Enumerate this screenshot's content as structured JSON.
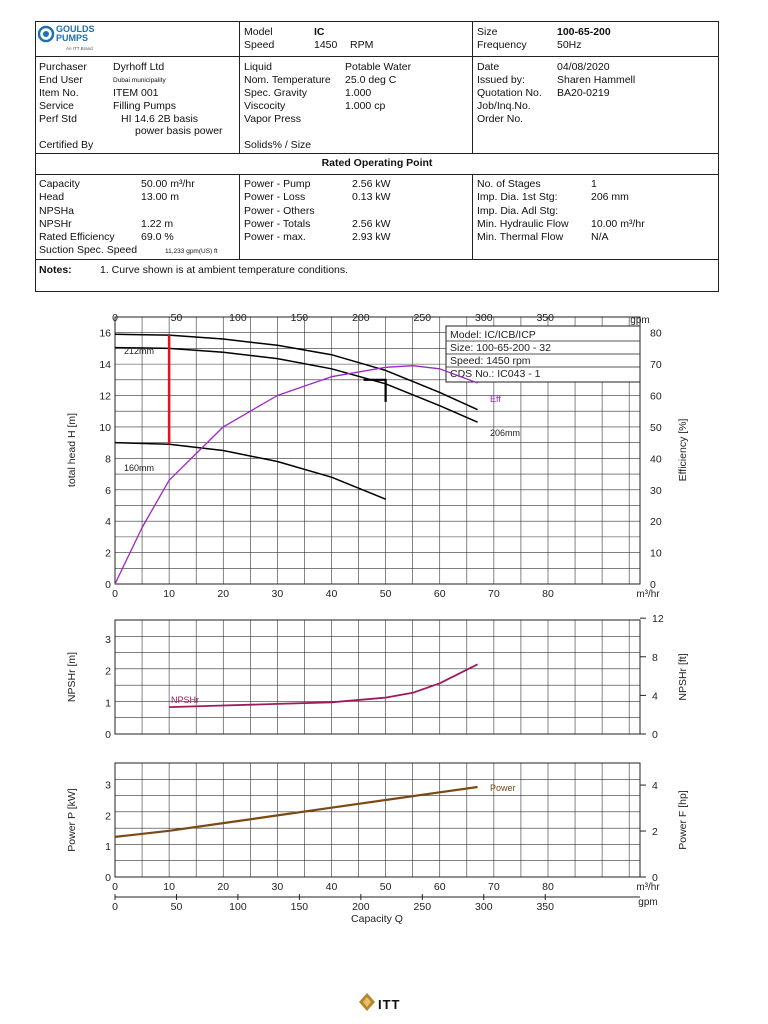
{
  "logo": {
    "line1": "GOULDS",
    "line2": "PUMPS",
    "tagline": "An ITT Brand",
    "color": "#1f6fb5"
  },
  "header": {
    "model_label": "Model",
    "model_value": "IC",
    "speed_label": "Speed",
    "speed_value": "1450",
    "speed_unit": "RPM",
    "size_label": "Size",
    "size_value": "100-65-200",
    "frequency_label": "Frequency",
    "frequency_value": "50Hz"
  },
  "info": {
    "col1": [
      {
        "label": "Purchaser",
        "value": "Dyrhoff Ltd"
      },
      {
        "label": "End User",
        "value": "Dubai municipality"
      },
      {
        "label": "Item No.",
        "value": "ITEM 001"
      },
      {
        "label": "Service",
        "value": "Filling Pumps"
      },
      {
        "label": "Perf Std",
        "value": "HI 14.6 2B basis"
      }
    ],
    "perf_std_line2": "power basis power",
    "certified_label": "Certified By",
    "col2": [
      {
        "label": "Liquid",
        "value": "Potable Water"
      },
      {
        "label": "Nom. Temperature",
        "value": "25.0 deg C"
      },
      {
        "label": "Spec. Gravity",
        "value": "1.000"
      },
      {
        "label": "Viscocity",
        "value": "1.000 cp"
      },
      {
        "label": "Vapor Press",
        "value": ""
      }
    ],
    "solids_label": "Solids% / Size",
    "col3": [
      {
        "label": "Date",
        "value": "04/08/2020"
      },
      {
        "label": "Issued by:",
        "value": "Sharen Hammell"
      },
      {
        "label": "Quotation No.",
        "value": "BA20-0219"
      },
      {
        "label": "Job/Inq.No.",
        "value": ""
      },
      {
        "label": "Order No.",
        "value": ""
      }
    ]
  },
  "rated_title": "Rated Operating Point",
  "rated": {
    "col1": [
      {
        "label": "Capacity",
        "value": "50.00 m³/hr"
      },
      {
        "label": "Head",
        "value": "13.00 m"
      },
      {
        "label": "NPSHa",
        "value": ""
      },
      {
        "label": "NPSHr",
        "value": "1.22 m"
      },
      {
        "label": "Rated Efficiency",
        "value": "69.0 %"
      }
    ],
    "suction_label": "Suction Spec. Speed",
    "suction_value": "11,233 gpm(US) ft",
    "col2": [
      {
        "label": "Power - Pump",
        "value": "2.56 kW"
      },
      {
        "label": "Power - Loss",
        "value": "0.13 kW"
      },
      {
        "label": "Power - Others",
        "value": ""
      },
      {
        "label": "Power - Totals",
        "value": "2.56 kW"
      },
      {
        "label": "Power - max.",
        "value": "2.93 kW"
      }
    ],
    "col3": [
      {
        "label": "No. of Stages",
        "value": "1"
      },
      {
        "label": "Imp. Dia. 1st Stg:",
        "value": "206 mm"
      },
      {
        "label": "Imp. Dia. Adl Stg:",
        "value": ""
      },
      {
        "label": "Min. Hydraulic Flow",
        "value": "10.00 m³/hr"
      },
      {
        "label": "Min. Thermal Flow",
        "value": "N/A"
      }
    ]
  },
  "notes": {
    "label": "Notes:",
    "text": "1. Curve shown is at ambient temperature conditions."
  },
  "chart_data": [
    {
      "type": "line",
      "title": "",
      "info_box": [
        "Model: IC/ICB/ICP",
        "Size: 100-65-200 - 32",
        "Speed: 1450 rpm",
        "CDS No.: IC043 - 1"
      ],
      "xlabel": "m³/hr",
      "x2label": "gpm",
      "ylabel": "total head H [m]",
      "y2label": "Efficiency [%]",
      "xlim": [
        0,
        97
      ],
      "ylim": [
        0,
        17
      ],
      "y2lim": [
        0,
        85
      ],
      "xticks": [
        0,
        10,
        20,
        30,
        40,
        50,
        60,
        70,
        80
      ],
      "x2ticks": [
        0,
        50,
        100,
        150,
        200,
        250,
        300,
        350
      ],
      "yticks": [
        0,
        2,
        4,
        6,
        8,
        10,
        12,
        14,
        16
      ],
      "y2ticks": [
        0,
        10,
        20,
        30,
        40,
        50,
        60,
        70,
        80
      ],
      "series": [
        {
          "name": "212mm",
          "color": "#000000",
          "x": [
            0,
            10,
            20,
            30,
            40,
            50,
            60,
            67
          ],
          "y": [
            15.9,
            15.85,
            15.6,
            15.2,
            14.6,
            13.6,
            12.2,
            11.1
          ]
        },
        {
          "name": "206mm",
          "color": "#000000",
          "x": [
            0,
            10,
            20,
            30,
            40,
            50,
            60,
            67
          ],
          "y": [
            15.05,
            15.0,
            14.75,
            14.35,
            13.7,
            12.75,
            11.35,
            10.3
          ]
        },
        {
          "name": "160mm",
          "color": "#000000",
          "x": [
            0,
            10,
            20,
            30,
            40,
            50
          ],
          "y": [
            9.0,
            8.9,
            8.5,
            7.8,
            6.8,
            5.4
          ]
        },
        {
          "name": "Eff",
          "color": "#9b27c8",
          "axis": "right",
          "x": [
            0,
            5,
            10,
            20,
            30,
            40,
            50,
            55,
            60,
            67
          ],
          "y": [
            0,
            18,
            33,
            50,
            60,
            66,
            69,
            69.5,
            68.5,
            64
          ]
        }
      ],
      "min_flow_marker": {
        "x": 10,
        "y_from": 8.9,
        "y_to": 15.85,
        "color": "#e8101a"
      },
      "rated_point": {
        "x": 50,
        "y": 13
      }
    },
    {
      "type": "line",
      "xlabel": "",
      "ylabel": "NPSHr [m]",
      "y2label": "NPSHr [ft]",
      "xlim": [
        0,
        97
      ],
      "ylim": [
        0,
        3.6
      ],
      "y2lim": [
        0,
        11.81
      ],
      "yticks": [
        0,
        1,
        2,
        3
      ],
      "y2ticks": [
        0,
        4,
        8,
        12
      ],
      "series": [
        {
          "name": "NPSHr",
          "color": "#a0195e",
          "x": [
            10,
            20,
            30,
            40,
            50,
            55,
            60,
            67
          ],
          "y": [
            0.85,
            0.9,
            0.95,
            1.0,
            1.15,
            1.3,
            1.6,
            2.2
          ]
        }
      ]
    },
    {
      "type": "line",
      "xlabel": "Capacity Q",
      "x1label": "m³/hr",
      "x2label": "gpm",
      "ylabel": "Power P [kW]",
      "y2label": "Power F [hp]",
      "xlim": [
        0,
        97
      ],
      "ylim": [
        0,
        3.7
      ],
      "y2lim": [
        0,
        4.96
      ],
      "xticks": [
        0,
        10,
        20,
        30,
        40,
        50,
        60,
        70,
        80
      ],
      "x2ticks": [
        0,
        50,
        100,
        150,
        200,
        250,
        300,
        350
      ],
      "yticks": [
        0,
        1,
        2,
        3
      ],
      "y2ticks": [
        0,
        2,
        4
      ],
      "series": [
        {
          "name": "Power",
          "color": "#7b4a14",
          "x": [
            0,
            10,
            20,
            30,
            40,
            50,
            60,
            67
          ],
          "y": [
            1.3,
            1.5,
            1.75,
            2.0,
            2.25,
            2.5,
            2.75,
            2.92
          ]
        }
      ]
    }
  ],
  "footer": {
    "brand": "ITT"
  }
}
